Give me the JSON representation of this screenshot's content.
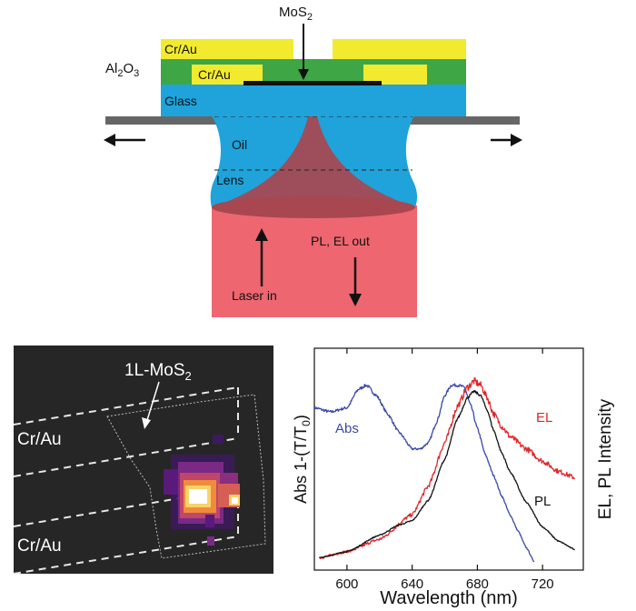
{
  "schematic": {
    "mos2_label": "MoS",
    "mos2_sub": "2",
    "al2o3_label": "Al",
    "al2o3_sub1": "2",
    "al2o3_o": "O",
    "al2o3_sub2": "3",
    "cr_au_top_label": "Cr/Au",
    "cr_au_inner_label": "Cr/Au",
    "glass_label": "Glass",
    "oil_label": "Oil",
    "lens_label": "Lens",
    "laser_label": "Laser in",
    "plel_label": "PL, EL out",
    "colors": {
      "gold": "#f2ea2e",
      "green": "#3fa645",
      "glass": "#1fa3da",
      "beam": "#ee6670",
      "stage": "#666666"
    }
  },
  "image_panel": {
    "mos2_label": "1L-MoS",
    "mos2_sub": "2",
    "cr_au_upper_label": "Cr/Au",
    "cr_au_lower_label": "Cr/Au",
    "background": "#262626"
  },
  "chart_data": {
    "type": "line",
    "xlabel": "Wavelength (nm)",
    "ylabel_left": "Abs 1-(T/T",
    "ylabel_left_sub": "0",
    "ylabel_left_close": ")",
    "ylabel_right": "EL, PL Intensity",
    "xlim": [
      580,
      745
    ],
    "ylim": [
      0,
      1
    ],
    "xticks": [
      "600",
      "640",
      "680",
      "720"
    ],
    "xtick_values": [
      600,
      640,
      680,
      720
    ],
    "series": [
      {
        "name": "Abs",
        "color": "#3a48a6",
        "x": [
          580,
          590,
          600,
          607,
          612,
          618,
          625,
          632,
          640,
          645,
          650,
          655,
          660,
          664,
          668,
          672,
          676,
          680,
          685,
          690,
          695,
          700,
          705,
          710,
          715
        ],
        "y": [
          0.75,
          0.73,
          0.75,
          0.84,
          0.86,
          0.81,
          0.72,
          0.63,
          0.55,
          0.55,
          0.58,
          0.68,
          0.81,
          0.86,
          0.86,
          0.85,
          0.76,
          0.65,
          0.52,
          0.42,
          0.32,
          0.23,
          0.15,
          0.07,
          0.0
        ]
      },
      {
        "name": "EL",
        "color": "#e0262a",
        "x": [
          583,
          600,
          620,
          640,
          650,
          660,
          668,
          674,
          678,
          682,
          686,
          690,
          695,
          700,
          710,
          720,
          730,
          740
        ],
        "y": [
          0.02,
          0.05,
          0.11,
          0.23,
          0.37,
          0.58,
          0.76,
          0.85,
          0.88,
          0.86,
          0.8,
          0.72,
          0.66,
          0.61,
          0.55,
          0.49,
          0.44,
          0.41
        ]
      },
      {
        "name": "PL",
        "color": "#111111",
        "x": [
          583,
          600,
          620,
          632,
          640,
          650,
          660,
          668,
          674,
          678,
          682,
          686,
          690,
          695,
          700,
          710,
          720,
          730,
          740
        ],
        "y": [
          0.02,
          0.05,
          0.13,
          0.18,
          0.2,
          0.3,
          0.5,
          0.7,
          0.8,
          0.83,
          0.81,
          0.74,
          0.64,
          0.53,
          0.44,
          0.29,
          0.17,
          0.1,
          0.06
        ]
      }
    ]
  }
}
